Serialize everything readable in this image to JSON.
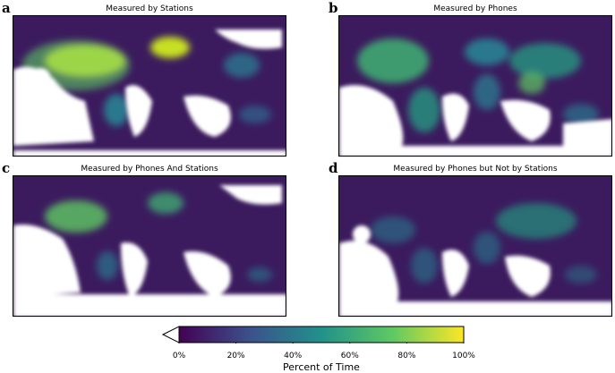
{
  "panels": [
    {
      "letter": "a",
      "title": "Measured by Stations"
    },
    {
      "letter": "b",
      "title": "Measured by Phones"
    },
    {
      "letter": "c",
      "title": "Measured by Phones And Stations"
    },
    {
      "letter": "d",
      "title": "Measured by Phones but Not by Stations"
    }
  ],
  "colorbar": {
    "title": "Percent of Time",
    "ticks": [
      "0%",
      "20%",
      "40%",
      "60%",
      "80%",
      "100%"
    ],
    "colors": [
      "#440154",
      "#3b528b",
      "#21918c",
      "#5ec962",
      "#fde725"
    ],
    "extend": "min"
  },
  "colors": {
    "ocean_fill": "#3b1b5e",
    "no_data": "#ffffff",
    "coastline": "#c8c8c8"
  }
}
